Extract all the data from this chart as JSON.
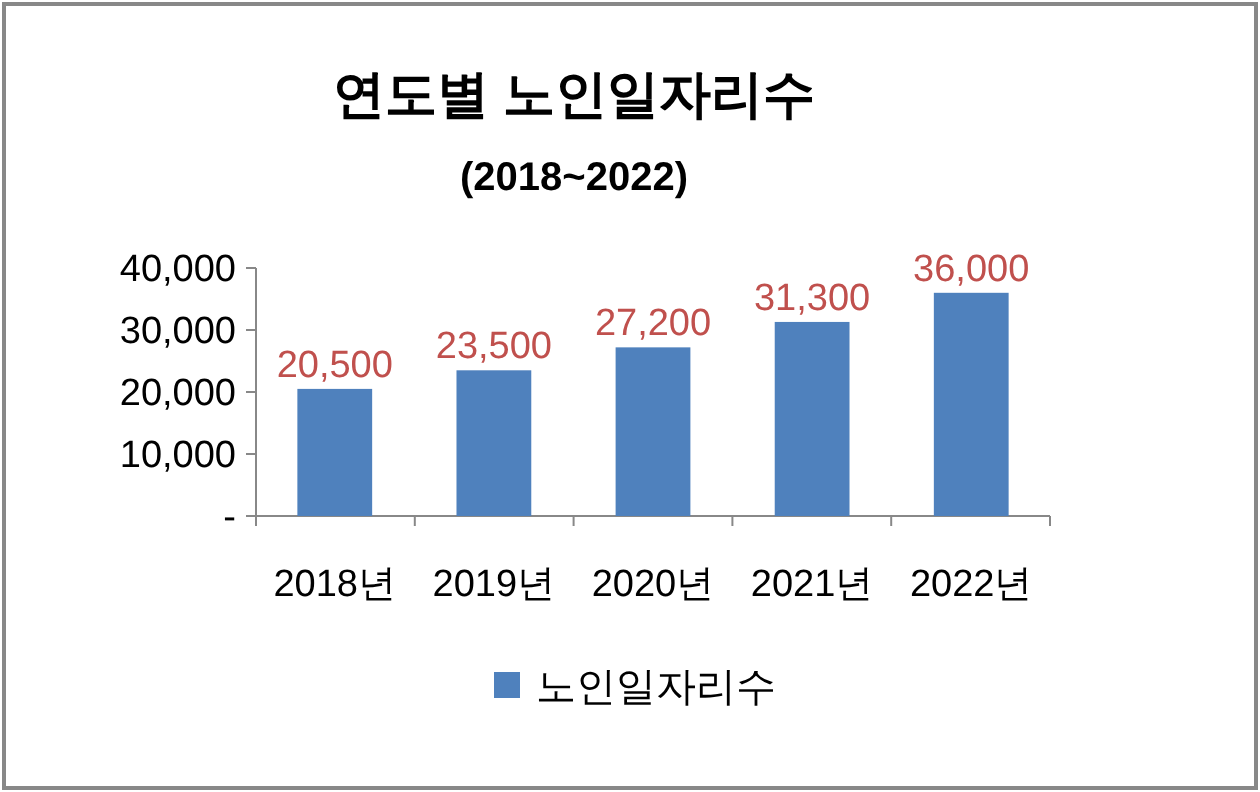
{
  "chart_data": {
    "type": "bar",
    "title": "연도별 노인일자리수",
    "subtitle": "(2018~2022)",
    "categories": [
      "2018년",
      "2019년",
      "2020년",
      "2021년",
      "2022년"
    ],
    "series": [
      {
        "name": "노인일자리수",
        "color": "#4f81bd",
        "values": [
          20500,
          23500,
          27200,
          31300,
          36000
        ],
        "value_labels": [
          "20,500",
          "23,500",
          "27,200",
          "31,300",
          "36,000"
        ]
      }
    ],
    "ylim": [
      0,
      40000
    ],
    "yticks": [
      {
        "value": 0,
        "label": "-"
      },
      {
        "value": 10000,
        "label": "10,000"
      },
      {
        "value": 20000,
        "label": "20,000"
      },
      {
        "value": 30000,
        "label": "30,000"
      },
      {
        "value": 40000,
        "label": "40,000"
      }
    ],
    "legend": "bottom"
  }
}
